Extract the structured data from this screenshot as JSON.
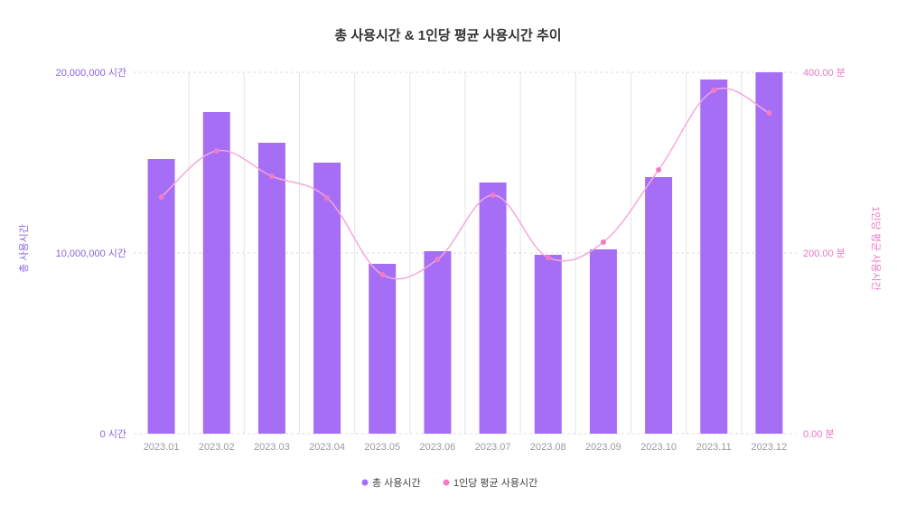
{
  "chart_data": {
    "type": "bar",
    "title": "총 사용시간 & 1인당 평균 사용시간 추이",
    "categories": [
      "2023.01",
      "2023.02",
      "2023.03",
      "2023.04",
      "2023.05",
      "2023.06",
      "2023.07",
      "2023.08",
      "2023.09",
      "2023.10",
      "2023.11",
      "2023.12"
    ],
    "series": [
      {
        "name": "총 사용시간",
        "kind": "bar",
        "axis": "left",
        "color": "#a56ef5",
        "values": [
          15200000,
          17800000,
          16100000,
          15000000,
          9400000,
          10100000,
          13900000,
          9900000,
          10200000,
          14200000,
          19600000,
          20000000
        ]
      },
      {
        "name": "1인당 평균 사용시간",
        "kind": "line",
        "axis": "right",
        "color": "#f37ac8",
        "values": [
          262,
          313,
          285,
          261,
          176,
          193,
          264,
          195,
          212,
          292,
          380,
          355
        ]
      }
    ],
    "y_left": {
      "label": "총 사용시간",
      "ylim": [
        0,
        20000000
      ],
      "ticks": [
        0,
        10000000,
        20000000
      ],
      "tick_labels": [
        "0 시간",
        "10,000,000 시간",
        "20,000,000 시간"
      ]
    },
    "y_right": {
      "label": "1인당 평균 사용시간",
      "ylim": [
        0,
        400
      ],
      "ticks": [
        0,
        200,
        400
      ],
      "tick_labels": [
        "0.00 분",
        "200.00 분",
        "400.00 분"
      ]
    },
    "grid": true,
    "legend_position": "bottom"
  }
}
